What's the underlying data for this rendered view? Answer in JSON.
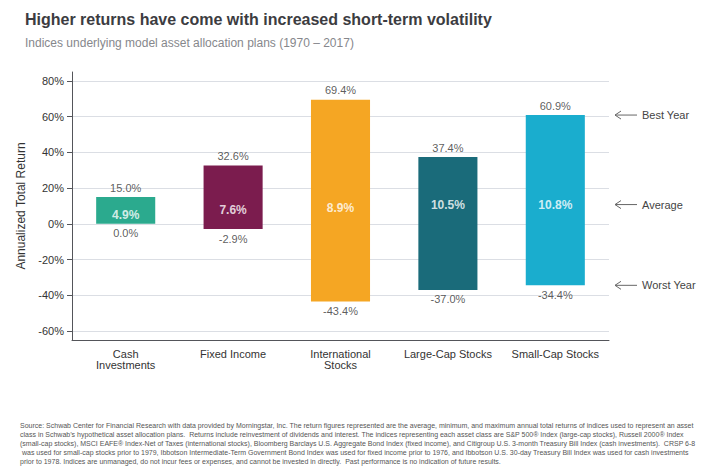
{
  "chart_data": {
    "type": "bar",
    "title": "Higher returns have come with increased short-term volatility",
    "subtitle": "Indices underlying model asset allocation plans (1970 – 2017)",
    "categories": [
      "Cash\nInvestments",
      "Fixed Income",
      "International\nStocks",
      "Large-Cap Stocks",
      "Small-Cap Stocks"
    ],
    "best": {
      "values": [
        15.0,
        32.6,
        69.4,
        37.4,
        60.9
      ],
      "value_labels": [
        "15.0%",
        "32.6%",
        "69.4%",
        "37.4%",
        "60.9%"
      ]
    },
    "average": {
      "values": [
        4.9,
        7.6,
        8.9,
        10.5,
        10.8
      ],
      "value_labels": [
        "4.9%",
        "7.6%",
        "8.9%",
        "10.5%",
        "10.8%"
      ]
    },
    "worst": {
      "values": [
        0.0,
        -2.9,
        -43.4,
        -37.0,
        -34.4
      ],
      "value_labels": [
        "0.0%",
        "-2.9%",
        "-43.4%",
        "-37.0%",
        "-34.4%"
      ]
    },
    "colors": [
      "#2baa8e",
      "#7b1c4e",
      "#f5a623",
      "#1a6b7a",
      "#1aadce"
    ],
    "ylabel": "Annualized Total Return",
    "ylim": [
      -65,
      85
    ],
    "yticks": [
      {
        "value": -60,
        "label": "-60%"
      },
      {
        "value": -40,
        "label": "-40%"
      },
      {
        "value": -20,
        "label": "-20%"
      },
      {
        "value": 0,
        "label": "0%"
      },
      {
        "value": 20,
        "label": "20%"
      },
      {
        "value": 40,
        "label": "40%"
      },
      {
        "value": 60,
        "label": "60%"
      },
      {
        "value": 80,
        "label": "80%"
      }
    ],
    "grid": true,
    "data_labels": true,
    "annotations": [
      "Best Year",
      "Average",
      "Worst Year"
    ],
    "source": "Source: Schwab Center for Financial Research with data provided by Morningstar, Inc. The return figures represented are the average, minimum, and maximum annual total returns of indices used to represent an asset class in Schwab’s hypothetical asset allocation plans.  Returns include reinvestment of dividends and interest. The indices representing each asset class are S&P 500® Index (large-cap stocks), Russell 2000® Index (small-cap stocks), MSCI EAFE® Index-Net of Taxes (international stocks), Bloomberg Barclays U.S. Aggregate Bond Index (fixed income), and Citigroup U.S. 3-month Treasury Bill Index (cash investments).  CRSP 6-8 was used for small-cap stocks prior to 1979, Ibbotson Intermediate-Term Government Bond Index was used for fixed income prior to 1976, and Ibbotson U.S. 30-day Treasury Bill Index was used for cash investments prior to 1978. Indices are unmanaged, do not incur fees or expenses, and cannot be invested in directly.  Past performance is no indication of future results."
  }
}
